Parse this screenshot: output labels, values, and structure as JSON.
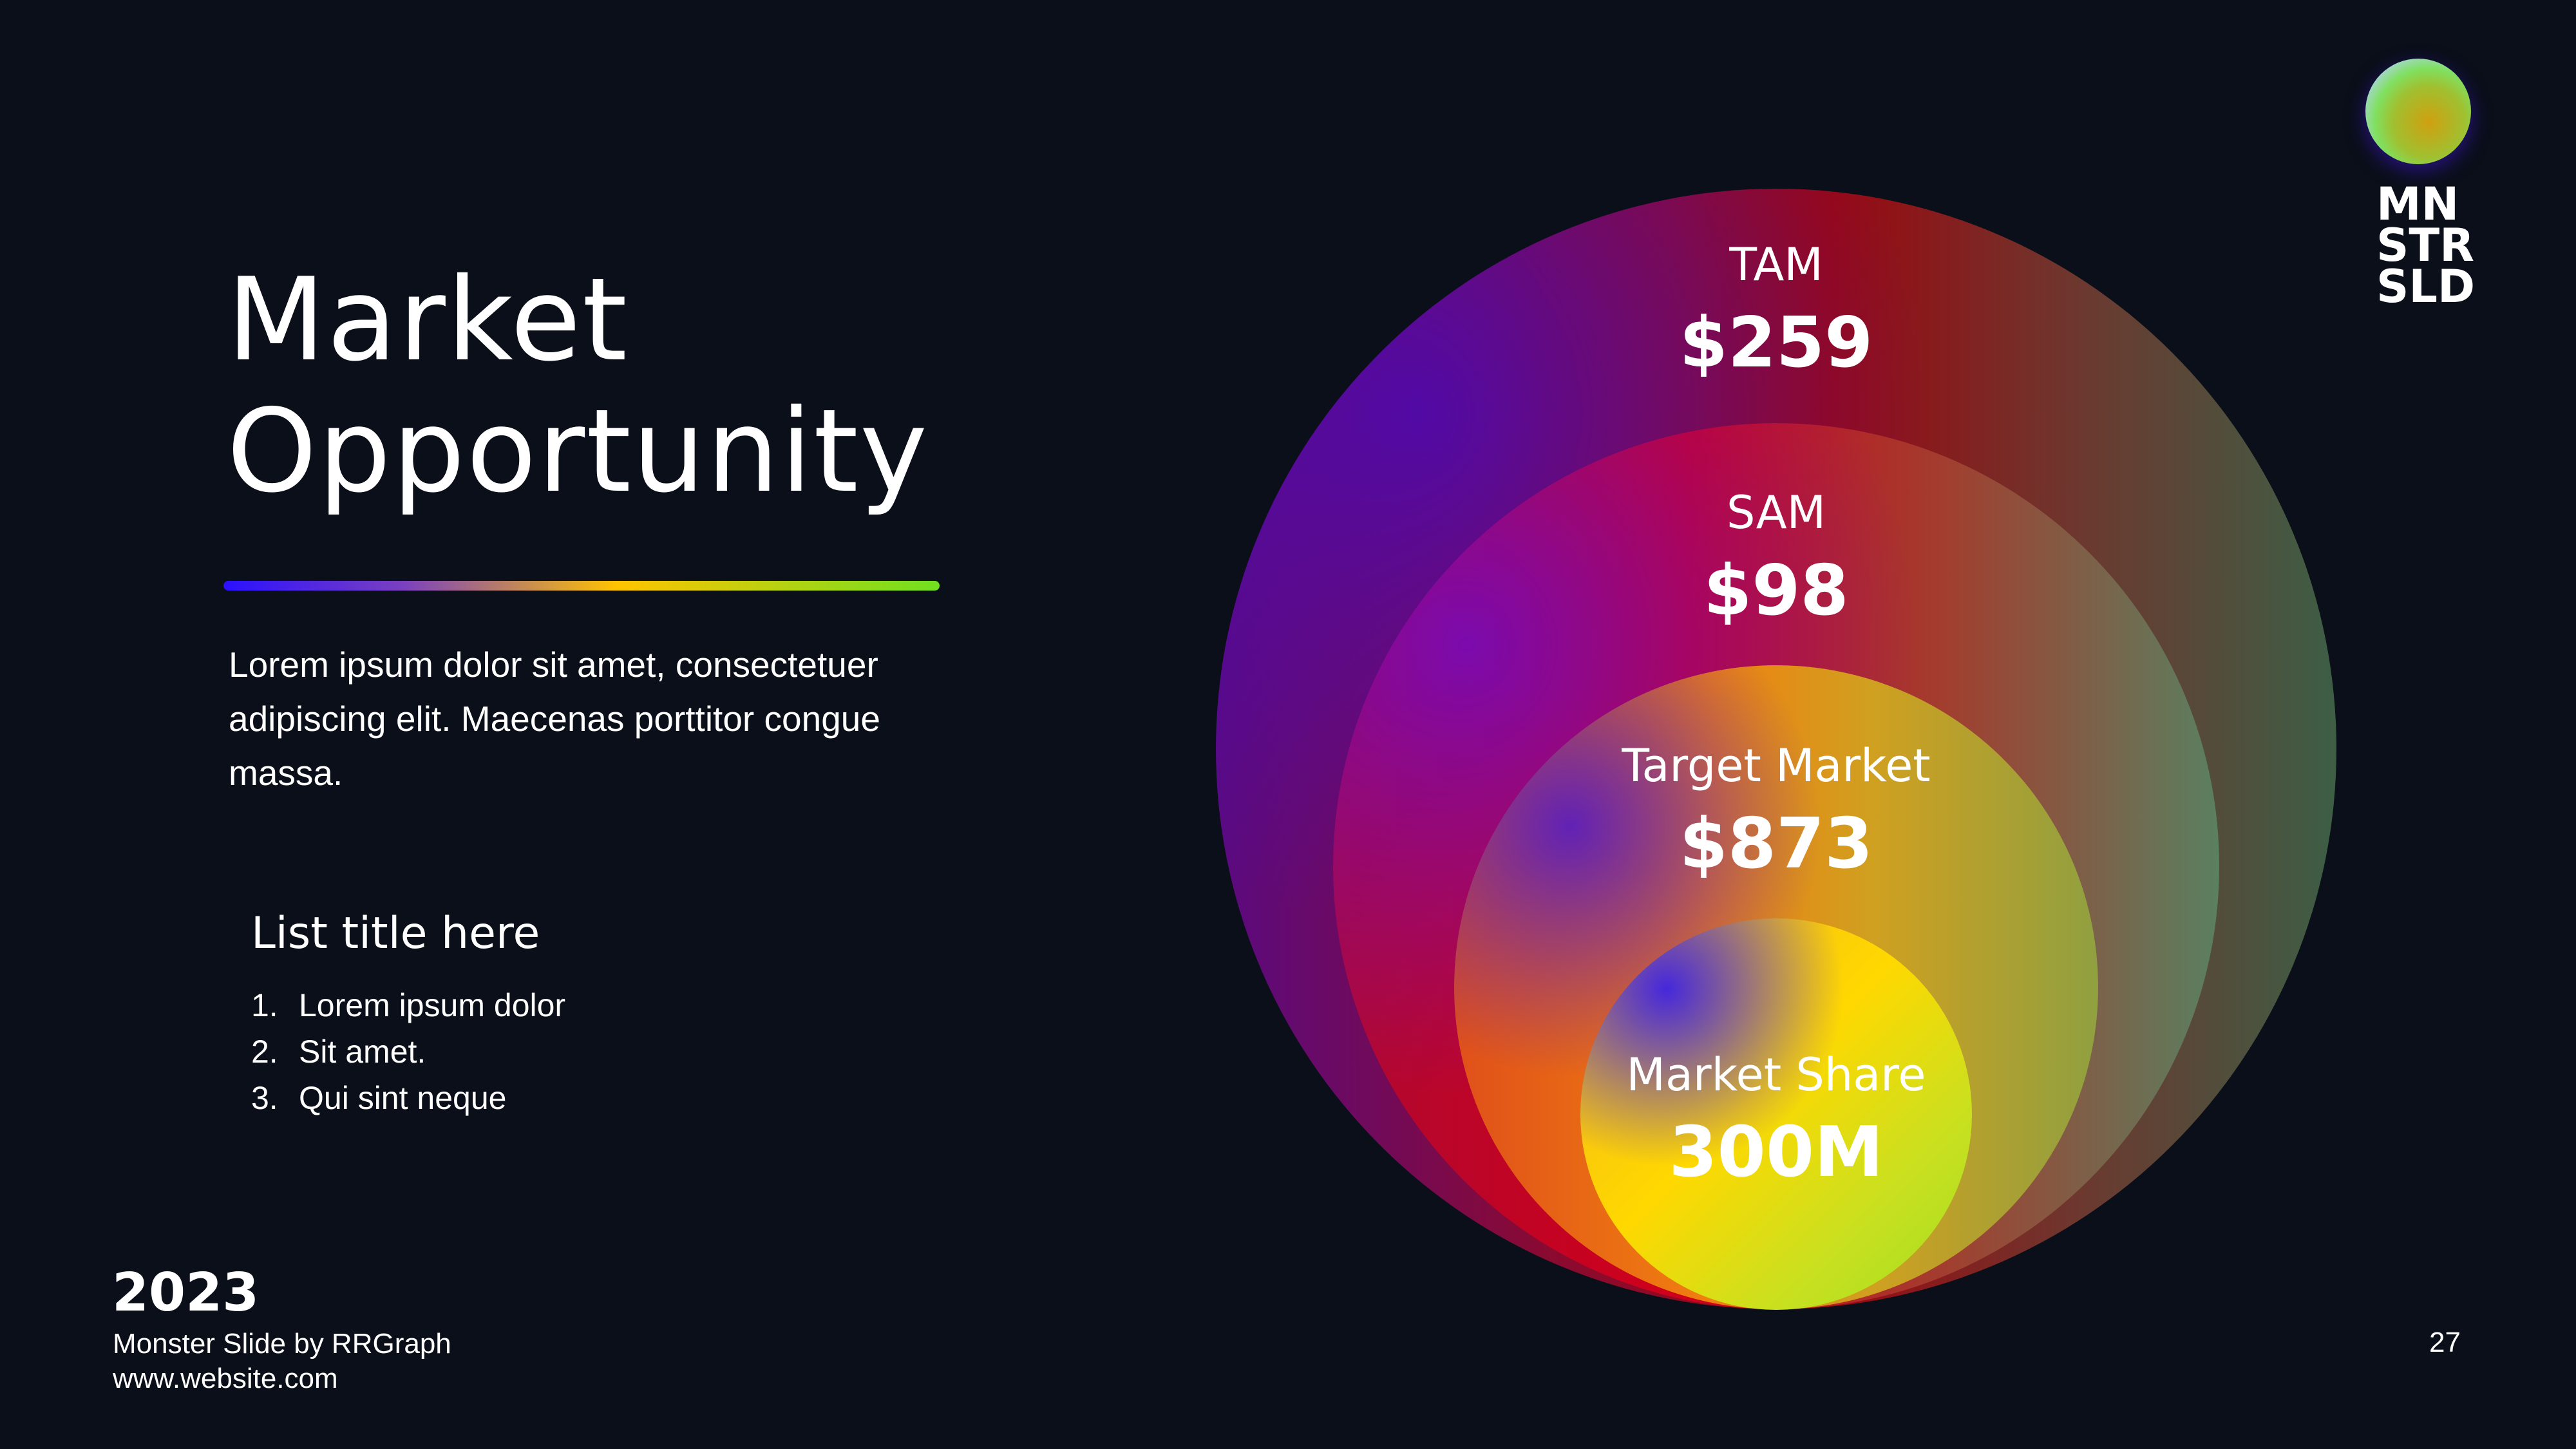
{
  "title": {
    "line1": "Market",
    "line2": "Opportunity"
  },
  "description": "Lorem ipsum dolor sit amet, consectetuer adipiscing elit. Maecenas porttitor congue massa.",
  "list": {
    "title": "List title here",
    "items": [
      {
        "num": "1.",
        "text": "Lorem ipsum dolor"
      },
      {
        "num": "2.",
        "text": "Sit amet."
      },
      {
        "num": "3.",
        "text": "Qui sint neque"
      }
    ]
  },
  "footer": {
    "year": "2023",
    "credit": "Monster Slide by RRGraph",
    "website": "www.website.com",
    "page": "27"
  },
  "logo": {
    "line1": "MN",
    "line2": "STR",
    "line3": "SLD"
  },
  "market": {
    "tam": {
      "label": "TAM",
      "value": "$259"
    },
    "sam": {
      "label": "SAM",
      "value": "$98"
    },
    "target": {
      "label": "Target Market",
      "value": "$873"
    },
    "share": {
      "label": "Market Share",
      "value": "300M"
    }
  },
  "colors": {
    "background": "#0a0f19",
    "accent_gradient": [
      "#2a10ff",
      "#ffc400",
      "#70e020"
    ]
  }
}
